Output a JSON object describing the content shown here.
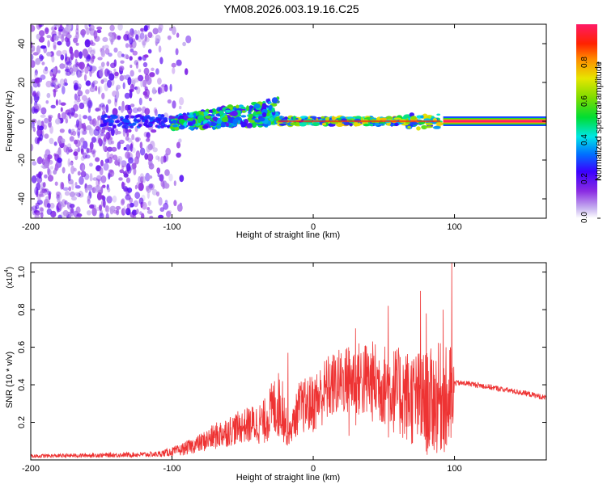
{
  "title": "YM08.2026.003.19.16.C25",
  "colorbar": {
    "label": "Normalized spectral amplitude",
    "ticks": [
      "0.0",
      "0.2",
      "0.4",
      "0.6",
      "0.8"
    ],
    "tick_values": [
      0.0,
      0.2,
      0.4,
      0.6,
      0.8
    ]
  },
  "chart_data": [
    {
      "type": "heatmap",
      "name": "spectrogram",
      "title": "YM08.2026.003.19.16.C25",
      "xlabel": "Height of straight line (km)",
      "ylabel": "Frequency (Hz)",
      "xlim": [
        -200,
        165
      ],
      "ylim": [
        -50,
        50
      ],
      "xticks": [
        -200,
        -100,
        0,
        100
      ],
      "xtick_labels": [
        "-200",
        "-100",
        "0",
        "100"
      ],
      "yticks": [
        -40,
        -20,
        0,
        20,
        40
      ],
      "ytick_labels": [
        "-40",
        "-20",
        "0",
        "20",
        "40"
      ],
      "colorscale_range": [
        0,
        1
      ],
      "features": [
        {
          "description": "scattered low-amplitude noise",
          "x_range": [
            -200,
            -85
          ],
          "freq_range": [
            -50,
            50
          ],
          "amplitude": 0.15
        },
        {
          "description": "broadening signal band",
          "x_range": [
            -100,
            -25
          ],
          "freq_range": [
            -5,
            12
          ],
          "amplitude": 0.45
        },
        {
          "description": "narrow band",
          "x_range": [
            -25,
            90
          ],
          "freq_range": [
            -3,
            3
          ],
          "amplitude": 0.6
        },
        {
          "description": "strong narrow line",
          "x_range": [
            92,
            165
          ],
          "freq_range": [
            -1.5,
            1.5
          ],
          "amplitude": 1.0
        }
      ]
    },
    {
      "type": "line",
      "name": "snr",
      "xlabel": "Height of straight line (km)",
      "ylabel": "SNR (10 * v/v)",
      "yscale_label": "(x10",
      "yscale_exp": "4",
      "xlim": [
        -200,
        165
      ],
      "ylim": [
        0,
        1.05
      ],
      "xticks": [
        -200,
        -100,
        0,
        100
      ],
      "xtick_labels": [
        "-200",
        "-100",
        "0",
        "100"
      ],
      "yticks": [
        0.2,
        0.4,
        0.6,
        0.8,
        1.0
      ],
      "ytick_labels": [
        "0.2",
        "0.4",
        "0.6",
        "0.8",
        "1.0"
      ],
      "series": [
        {
          "name": "SNR",
          "color": "#ee3333",
          "envelope_x": [
            -200,
            -150,
            -110,
            -95,
            -80,
            -65,
            -50,
            -35,
            -28,
            -22,
            -18,
            -10,
            0,
            10,
            20,
            30,
            40,
            50,
            60,
            70,
            80,
            90,
            95,
            99,
            100,
            110,
            120,
            130,
            140,
            150,
            165
          ],
          "envelope_mean": [
            0.02,
            0.025,
            0.03,
            0.05,
            0.09,
            0.14,
            0.18,
            0.2,
            0.28,
            0.3,
            0.12,
            0.28,
            0.3,
            0.38,
            0.42,
            0.43,
            0.42,
            0.4,
            0.36,
            0.33,
            0.3,
            0.33,
            0.3,
            0.35,
            0.41,
            0.41,
            0.4,
            0.39,
            0.38,
            0.37,
            0.35
          ],
          "envelope_spread": [
            0.01,
            0.012,
            0.015,
            0.03,
            0.05,
            0.08,
            0.09,
            0.12,
            0.16,
            0.2,
            0.05,
            0.14,
            0.16,
            0.18,
            0.18,
            0.2,
            0.22,
            0.22,
            0.24,
            0.26,
            0.28,
            0.3,
            0.3,
            0.3,
            0.015,
            0.015,
            0.015,
            0.015,
            0.015,
            0.015,
            0.015
          ],
          "peaks": [
            {
              "x": -18,
              "y": 0.57
            },
            {
              "x": 25,
              "y": 0.6
            },
            {
              "x": 30,
              "y": 0.7
            },
            {
              "x": 53,
              "y": 0.82
            },
            {
              "x": 76,
              "y": 0.9
            },
            {
              "x": 80,
              "y": 0.78
            },
            {
              "x": 92,
              "y": 0.8
            },
            {
              "x": 98,
              "y": 1.05
            }
          ]
        }
      ]
    }
  ]
}
